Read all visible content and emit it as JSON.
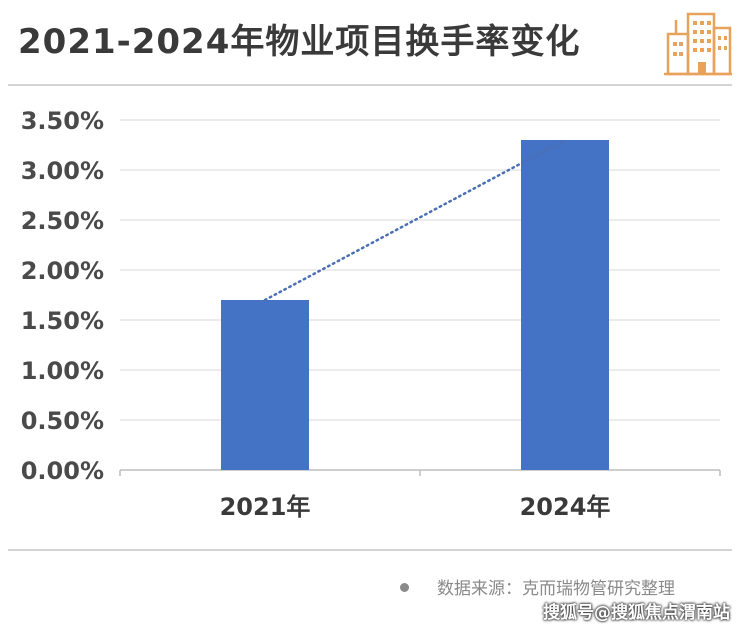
{
  "header": {
    "title": "2021-2024年物业项目换手率变化",
    "icon": "building-icon"
  },
  "chart_data": {
    "type": "bar",
    "title": "2021-2024年物业项目换手率变化",
    "categories": [
      "2021年",
      "2024年"
    ],
    "values": [
      1.7,
      3.3
    ],
    "unit": "%",
    "ylim": [
      0,
      3.5
    ],
    "yticks": [
      "0.00%",
      "0.50%",
      "1.00%",
      "1.50%",
      "2.00%",
      "2.50%",
      "3.00%",
      "3.50%"
    ],
    "ytick_values": [
      0,
      0.5,
      1.0,
      1.5,
      2.0,
      2.5,
      3.0,
      3.5
    ],
    "grid": true,
    "trendline": "dotted",
    "colors": {
      "bar": "#4472c4",
      "trendline": "#4a6fb5",
      "grid": "#d9d9d9"
    }
  },
  "footer": {
    "source": "数据来源：克而瑞物管研究整理",
    "watermark": "搜狐号@搜狐焦点渭南站"
  }
}
